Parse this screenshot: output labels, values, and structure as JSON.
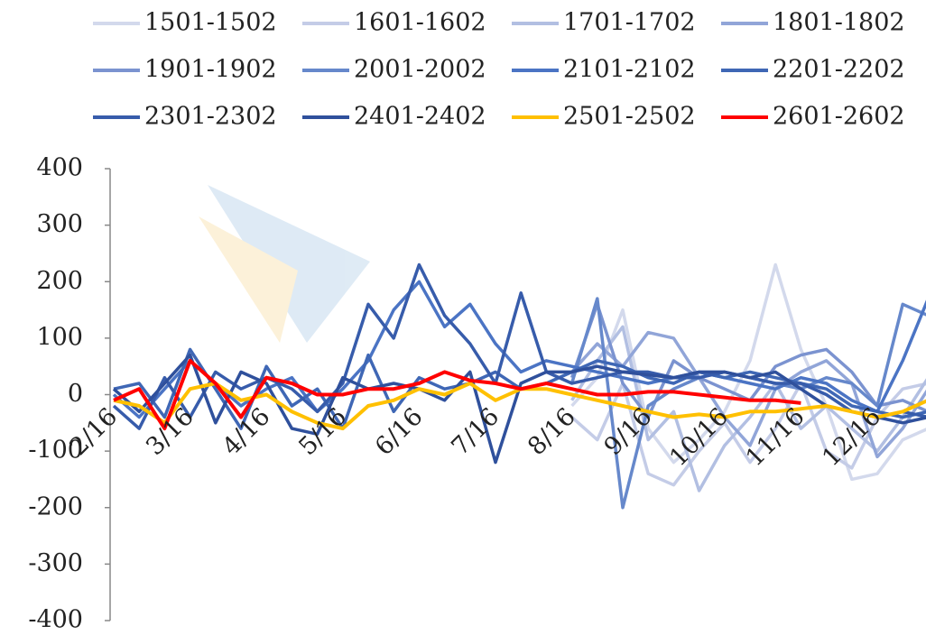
{
  "chart_data": {
    "type": "line",
    "categories": [
      "2/16",
      null,
      null,
      "3/16",
      null,
      null,
      "4/16",
      null,
      null,
      "5/16",
      null,
      null,
      "6/16",
      null,
      null,
      "7/16",
      null,
      null,
      "8/16",
      null,
      null,
      "9/16",
      null,
      null,
      "10/16",
      null,
      null,
      "11/16",
      null,
      null,
      "12/16",
      null,
      null
    ],
    "ylim": [
      -400,
      400
    ],
    "yticks": [
      -400,
      -300,
      -200,
      -100,
      0,
      100,
      200,
      300,
      400
    ],
    "series": [
      {
        "name": "1501-1502",
        "color": "#d3d9ec",
        "values": [
          null,
          null,
          null,
          null,
          null,
          null,
          null,
          null,
          null,
          null,
          null,
          null,
          null,
          null,
          null,
          null,
          null,
          null,
          -20,
          30,
          150,
          -60,
          -120,
          -80,
          -30,
          60,
          230,
          80,
          -20,
          -150,
          -140,
          -80,
          -60
        ]
      },
      {
        "name": "1601-1602",
        "color": "#c4cce7",
        "values": [
          null,
          null,
          null,
          null,
          null,
          null,
          null,
          null,
          null,
          null,
          null,
          null,
          null,
          null,
          null,
          null,
          null,
          null,
          -40,
          -80,
          20,
          -140,
          -160,
          -100,
          -50,
          -120,
          -60,
          20,
          -100,
          -130,
          -40,
          10,
          20
        ]
      },
      {
        "name": "1701-1702",
        "color": "#b2bfe2",
        "values": [
          null,
          null,
          null,
          null,
          null,
          null,
          null,
          null,
          null,
          null,
          null,
          null,
          null,
          null,
          null,
          null,
          null,
          null,
          -10,
          60,
          120,
          -80,
          -30,
          -170,
          -90,
          -40,
          20,
          -60,
          -20,
          -60,
          -100,
          -40,
          30
        ]
      },
      {
        "name": "1801-1802",
        "color": "#91a5d8",
        "values": [
          null,
          null,
          null,
          null,
          null,
          null,
          null,
          null,
          null,
          null,
          null,
          null,
          null,
          null,
          null,
          null,
          null,
          null,
          40,
          90,
          50,
          110,
          100,
          30,
          -40,
          -90,
          10,
          40,
          60,
          20,
          -110,
          -60,
          10
        ]
      },
      {
        "name": "1901-1902",
        "color": "#7b93d0",
        "values": [
          null,
          null,
          null,
          null,
          null,
          null,
          null,
          null,
          null,
          null,
          null,
          null,
          null,
          null,
          null,
          null,
          null,
          null,
          30,
          160,
          20,
          -40,
          60,
          30,
          10,
          -10,
          50,
          70,
          80,
          40,
          -20,
          -10,
          -30
        ]
      },
      {
        "name": "2001-2002",
        "color": "#6688cb",
        "values": [
          null,
          null,
          null,
          null,
          null,
          null,
          null,
          null,
          null,
          null,
          null,
          null,
          null,
          null,
          null,
          null,
          null,
          null,
          20,
          170,
          -200,
          -20,
          10,
          30,
          40,
          30,
          20,
          10,
          30,
          20,
          -20,
          160,
          140
        ]
      },
      {
        "name": "2101-2102",
        "color": "#4b74c4",
        "values": [
          0,
          -40,
          10,
          60,
          20,
          -20,
          10,
          30,
          -30,
          10,
          60,
          150,
          200,
          120,
          160,
          90,
          40,
          60,
          50,
          40,
          30,
          20,
          30,
          40,
          30,
          20,
          10,
          30,
          20,
          -10,
          -30,
          60,
          170
        ]
      },
      {
        "name": "2201-2202",
        "color": "#3f67b5",
        "values": [
          10,
          20,
          -40,
          80,
          10,
          -60,
          50,
          -20,
          10,
          -60,
          70,
          -30,
          30,
          10,
          20,
          40,
          10,
          20,
          40,
          60,
          50,
          30,
          20,
          40,
          30,
          40,
          30,
          20,
          10,
          -20,
          -30,
          -40,
          -30
        ]
      },
      {
        "name": "2301-2302",
        "color": "#375cab",
        "values": [
          -20,
          -60,
          30,
          -40,
          40,
          10,
          30,
          10,
          -30,
          20,
          160,
          100,
          230,
          140,
          90,
          20,
          180,
          40,
          20,
          30,
          40,
          40,
          30,
          30,
          40,
          30,
          20,
          20,
          0,
          -30,
          -40,
          -30,
          -40
        ]
      },
      {
        "name": "2401-2402",
        "color": "#2f509c",
        "values": [
          10,
          -30,
          20,
          70,
          -50,
          40,
          20,
          -60,
          -70,
          30,
          10,
          20,
          10,
          -10,
          40,
          -120,
          20,
          40,
          40,
          50,
          40,
          35,
          30,
          40,
          40,
          30,
          40,
          10,
          -20,
          -30,
          -40,
          -50,
          -40
        ]
      },
      {
        "name": "2501-2502",
        "color": "#ffc000",
        "values": [
          -10,
          -20,
          -50,
          10,
          20,
          -10,
          0,
          -30,
          -50,
          -60,
          -20,
          -10,
          10,
          0,
          20,
          -10,
          10,
          10,
          0,
          -10,
          -20,
          -30,
          -40,
          -35,
          -40,
          -30,
          -30,
          -25,
          -20,
          -30,
          -40,
          -30,
          -10
        ]
      },
      {
        "name": "2601-2602",
        "color": "#ff0000",
        "values": [
          -10,
          10,
          -60,
          60,
          20,
          -40,
          30,
          20,
          0,
          0,
          10,
          10,
          20,
          40,
          25,
          20,
          10,
          20,
          10,
          0,
          0,
          5,
          5,
          0,
          -5,
          -10,
          -10,
          -15,
          null,
          null,
          null,
          null,
          null
        ]
      }
    ]
  }
}
